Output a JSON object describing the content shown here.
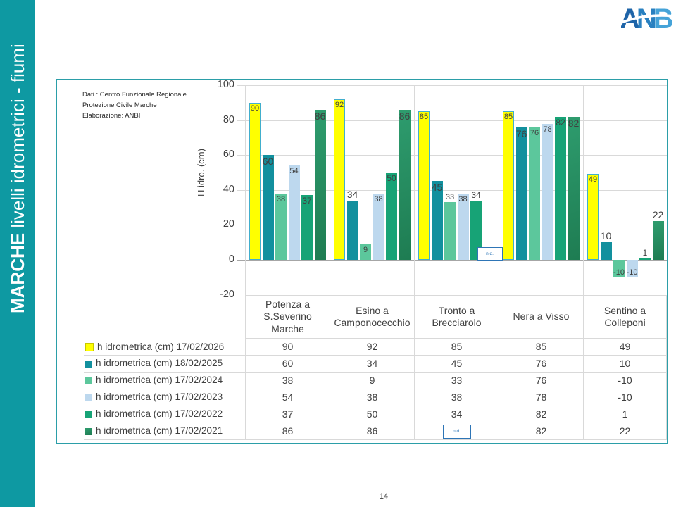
{
  "page_number": "14",
  "sidebar": {
    "region": "MARCHE",
    "subtitle": " livelli idrometrici - fiumi"
  },
  "logo": {
    "letters": [
      "A",
      "N",
      "B",
      "I"
    ]
  },
  "note_lines": [
    "Dati : Centro Funzionale Regionale",
    "Protezione Civile Marche",
    "Elaborazione: ANBI"
  ],
  "chart_data": {
    "type": "bar",
    "title": "",
    "xlabel": "",
    "ylabel": "H idro. (cm)",
    "ylim": [
      -20,
      100
    ],
    "yticks": [
      100,
      80,
      60,
      40,
      20,
      0,
      -20
    ],
    "grid": true,
    "legend_position": "table-below-chart",
    "missing_value_label": "n.d.",
    "categories": [
      "Potenza a S.Severino Marche",
      "Esino a Camponocecchio",
      "Tronto a Brecciarolo",
      "Nera a Visso",
      "Sentino a Colleponi"
    ],
    "series": [
      {
        "name": "h idrometrica (cm) 17/02/2026",
        "color": "#FFFF00",
        "border_color": "#41AECD",
        "values": [
          90,
          92,
          85,
          85,
          49
        ],
        "label_pos": [
          "in",
          "in",
          "in",
          "in",
          "in"
        ]
      },
      {
        "name": "h idrometrica (cm) 18/02/2025",
        "color": "#12909E",
        "values": [
          60,
          34,
          45,
          76,
          10
        ],
        "label_pos": [
          "in",
          "out",
          "in",
          "in",
          "out"
        ]
      },
      {
        "name": "h idrometrica (cm) 17/02/2024",
        "color": "#5CC79C",
        "values": [
          38,
          9,
          33,
          76,
          -10
        ],
        "label_pos": [
          "in",
          "in",
          "out",
          "in",
          "in"
        ]
      },
      {
        "name": "h idrometrica (cm) 17/02/2023",
        "color": "#BDD8EE",
        "values": [
          54,
          38,
          38,
          78,
          -10
        ],
        "label_pos": [
          "in",
          "in",
          "in",
          "in",
          "in"
        ]
      },
      {
        "name": "h idrometrica (cm) 17/02/2022",
        "color": "#17A376",
        "values": [
          37,
          50,
          34,
          82,
          1
        ],
        "label_pos": [
          "in",
          "in",
          "out",
          "in",
          "out"
        ]
      },
      {
        "name": "h idrometrica (cm) 17/02/2021",
        "color": "#2E9C6E",
        "color2": "#1E7C52",
        "values": [
          86,
          86,
          null,
          82,
          22
        ],
        "label_pos": [
          "in",
          "in",
          "in",
          "in",
          "out"
        ]
      }
    ]
  }
}
